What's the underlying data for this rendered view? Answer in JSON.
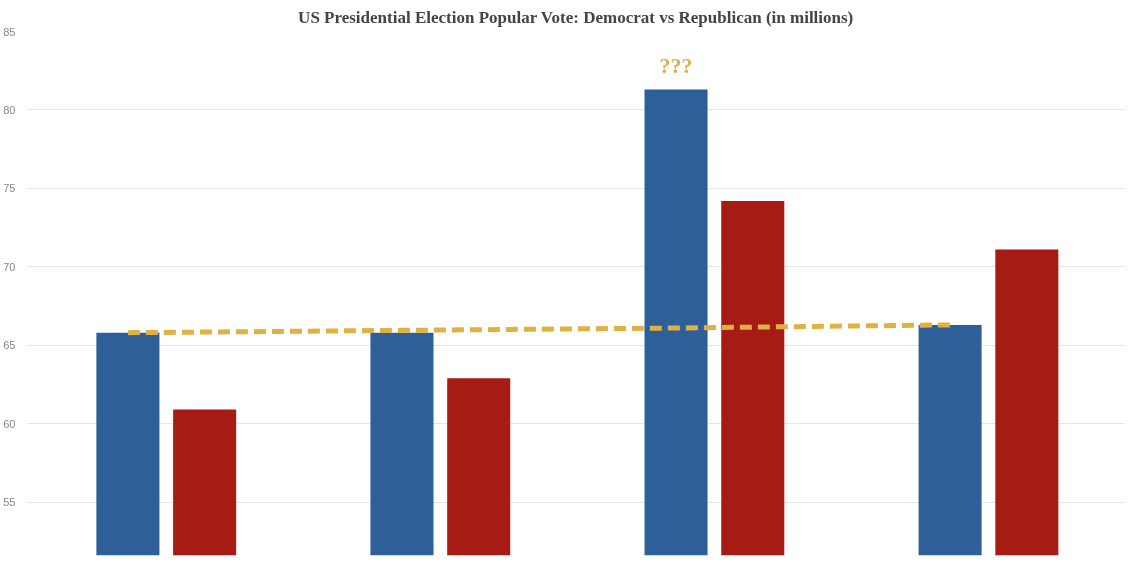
{
  "chart_data": {
    "type": "bar",
    "title": "US Presidential Election Popular Vote: Democrat vs Republican (in millions)",
    "categories": [
      null,
      null,
      null,
      null
    ],
    "series": [
      {
        "color": "#2f5f98",
        "values": [
          65.8,
          65.8,
          81.3,
          66.3
        ]
      },
      {
        "color": "#a61c14",
        "values": [
          60.9,
          62.9,
          74.2,
          71.1
        ]
      },
      {
        "type": "line",
        "color": "#e0b040",
        "line_style": "dashed",
        "values": [
          65.8,
          65.95,
          66.1,
          66.3
        ]
      }
    ],
    "annotations": [
      "???"
    ],
    "ylim": [
      51.6,
      85
    ],
    "yticks": [
      55,
      60,
      65,
      70,
      75,
      80,
      85
    ],
    "grid": "y",
    "tick_labels": "y"
  }
}
